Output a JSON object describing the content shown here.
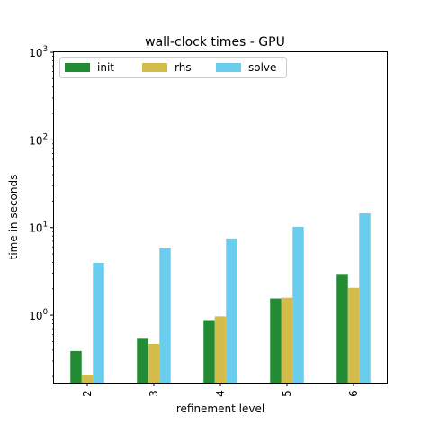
{
  "chart_data": {
    "type": "bar",
    "title": "wall-clock times - GPU",
    "xlabel": "refinement level",
    "ylabel": "time in seconds",
    "yscale": "log",
    "ylim": [
      0.17,
      1000
    ],
    "categories": [
      "2",
      "3",
      "4",
      "5",
      "6"
    ],
    "series": [
      {
        "name": "init",
        "color": "#238b33",
        "values": [
          0.39,
          0.55,
          0.88,
          1.55,
          2.95
        ]
      },
      {
        "name": "rhs",
        "color": "#d3bc4a",
        "values": [
          0.21,
          0.47,
          0.97,
          1.58,
          2.05
        ]
      },
      {
        "name": "solve",
        "color": "#6bcdee",
        "values": [
          3.95,
          5.9,
          7.5,
          10.2,
          14.5
        ]
      }
    ],
    "y_ticks": [
      {
        "base": "10",
        "exp": "0",
        "value": 1
      },
      {
        "base": "10",
        "exp": "1",
        "value": 10
      },
      {
        "base": "10",
        "exp": "2",
        "value": 100
      },
      {
        "base": "10",
        "exp": "3",
        "value": 1000
      }
    ],
    "legend_position": "upper-left",
    "grid": false
  }
}
